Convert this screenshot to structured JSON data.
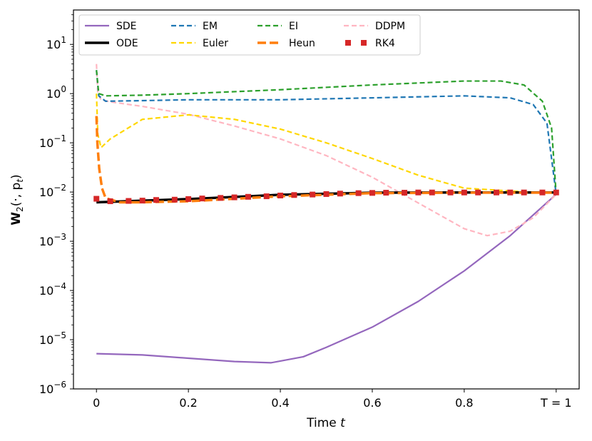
{
  "chart_data": {
    "type": "line",
    "xlabel": "Time",
    "xlabel_var": "t",
    "ylabel": "W",
    "ylabel_sub": "2",
    "ylabel_rest": "(·, p",
    "ylabel_rest_sub": "t",
    "ylabel_close": ")",
    "yscale": "log",
    "xlim": [
      -0.05,
      1.05
    ],
    "ylim": [
      1e-06,
      50
    ],
    "x_ticks": [
      {
        "value": 0,
        "label": "0"
      },
      {
        "value": 0.2,
        "label": "0.2"
      },
      {
        "value": 0.4,
        "label": "0.4"
      },
      {
        "value": 0.6,
        "label": "0.6"
      },
      {
        "value": 0.8,
        "label": "0.8"
      },
      {
        "value": 1.0,
        "label": "T = 1"
      }
    ],
    "y_ticks": [
      {
        "exp": 1,
        "base": "10",
        "sup": "1"
      },
      {
        "exp": 0,
        "base": "10",
        "sup": "0"
      },
      {
        "exp": -1,
        "base": "10",
        "sup": "−1"
      },
      {
        "exp": -2,
        "base": "10",
        "sup": "−2"
      },
      {
        "exp": -3,
        "base": "10",
        "sup": "−3"
      },
      {
        "exp": -4,
        "base": "10",
        "sup": "−4"
      },
      {
        "exp": -5,
        "base": "10",
        "sup": "−5"
      },
      {
        "exp": -6,
        "base": "10",
        "sup": "−6"
      }
    ],
    "legend_position": "top-left",
    "series": [
      {
        "name": "SDE",
        "color": "#9467bd",
        "style": "solid",
        "x": [
          0,
          0.1,
          0.2,
          0.3,
          0.38,
          0.45,
          0.5,
          0.6,
          0.7,
          0.8,
          0.9,
          1.0
        ],
        "y": [
          5.2e-06,
          4.9e-06,
          4.2e-06,
          3.6e-06,
          3.4e-06,
          4.5e-06,
          7e-06,
          1.8e-05,
          6e-05,
          0.00025,
          0.0013,
          0.009
        ]
      },
      {
        "name": "ODE",
        "color": "#000000",
        "style": "solid-thick",
        "x": [
          0,
          0.2,
          0.4,
          0.6,
          0.8,
          1.0
        ],
        "y": [
          0.0062,
          0.0072,
          0.0088,
          0.0097,
          0.0098,
          0.0098
        ]
      },
      {
        "name": "EM",
        "color": "#1f77b4",
        "style": "dashed",
        "x": [
          0,
          0.005,
          0.02,
          0.1,
          0.2,
          0.4,
          0.6,
          0.8,
          0.9,
          0.95,
          0.98,
          1.0
        ],
        "y": [
          3.0,
          0.9,
          0.7,
          0.72,
          0.75,
          0.75,
          0.82,
          0.9,
          0.82,
          0.6,
          0.25,
          0.009
        ]
      },
      {
        "name": "Euler",
        "color": "#ffd700",
        "style": "dashed",
        "x": [
          0,
          0.003,
          0.01,
          0.03,
          0.1,
          0.2,
          0.3,
          0.4,
          0.5,
          0.6,
          0.7,
          0.8,
          0.9,
          1.0
        ],
        "y": [
          1.0,
          0.15,
          0.08,
          0.12,
          0.3,
          0.37,
          0.3,
          0.19,
          0.1,
          0.048,
          0.022,
          0.012,
          0.0105,
          0.0095
        ]
      },
      {
        "name": "EI",
        "color": "#2ca02c",
        "style": "dashed",
        "x": [
          0,
          0.005,
          0.02,
          0.1,
          0.2,
          0.4,
          0.6,
          0.8,
          0.88,
          0.93,
          0.97,
          0.99,
          1.0
        ],
        "y": [
          3.0,
          1.0,
          0.9,
          0.93,
          1.0,
          1.2,
          1.5,
          1.8,
          1.8,
          1.5,
          0.7,
          0.2,
          0.009
        ]
      },
      {
        "name": "Heun",
        "color": "#ff7f0e",
        "style": "dashed-thick",
        "x": [
          0,
          0.002,
          0.006,
          0.012,
          0.02,
          0.05,
          0.1,
          0.2,
          0.4,
          0.6,
          0.8,
          1.0
        ],
        "y": [
          0.35,
          0.1,
          0.03,
          0.012,
          0.0075,
          0.0062,
          0.0062,
          0.0065,
          0.0082,
          0.0095,
          0.0097,
          0.0097
        ]
      },
      {
        "name": "DDPM",
        "color": "#ffb6c1",
        "style": "dashed",
        "x": [
          0,
          0.003,
          0.01,
          0.03,
          0.1,
          0.2,
          0.3,
          0.4,
          0.5,
          0.6,
          0.7,
          0.8,
          0.85,
          0.9,
          0.95,
          1.0
        ],
        "y": [
          4.0,
          1.0,
          0.75,
          0.68,
          0.55,
          0.38,
          0.22,
          0.12,
          0.055,
          0.02,
          0.006,
          0.0018,
          0.0013,
          0.0016,
          0.003,
          0.009
        ]
      },
      {
        "name": "RK4",
        "color": "#d62728",
        "style": "markers",
        "x": [
          0,
          0.03,
          0.07,
          0.1,
          0.13,
          0.17,
          0.2,
          0.23,
          0.27,
          0.3,
          0.33,
          0.37,
          0.4,
          0.43,
          0.47,
          0.5,
          0.53,
          0.57,
          0.6,
          0.63,
          0.67,
          0.7,
          0.73,
          0.77,
          0.8,
          0.83,
          0.87,
          0.9,
          0.93,
          0.97,
          1.0
        ],
        "y": [
          0.0073,
          0.0065,
          0.0066,
          0.0067,
          0.0069,
          0.007,
          0.0072,
          0.0074,
          0.0076,
          0.0078,
          0.008,
          0.0082,
          0.0085,
          0.0087,
          0.0089,
          0.0091,
          0.0093,
          0.0095,
          0.0096,
          0.0097,
          0.0097,
          0.0098,
          0.0098,
          0.0098,
          0.0098,
          0.0098,
          0.0098,
          0.0098,
          0.0098,
          0.0098,
          0.0098
        ]
      }
    ]
  }
}
